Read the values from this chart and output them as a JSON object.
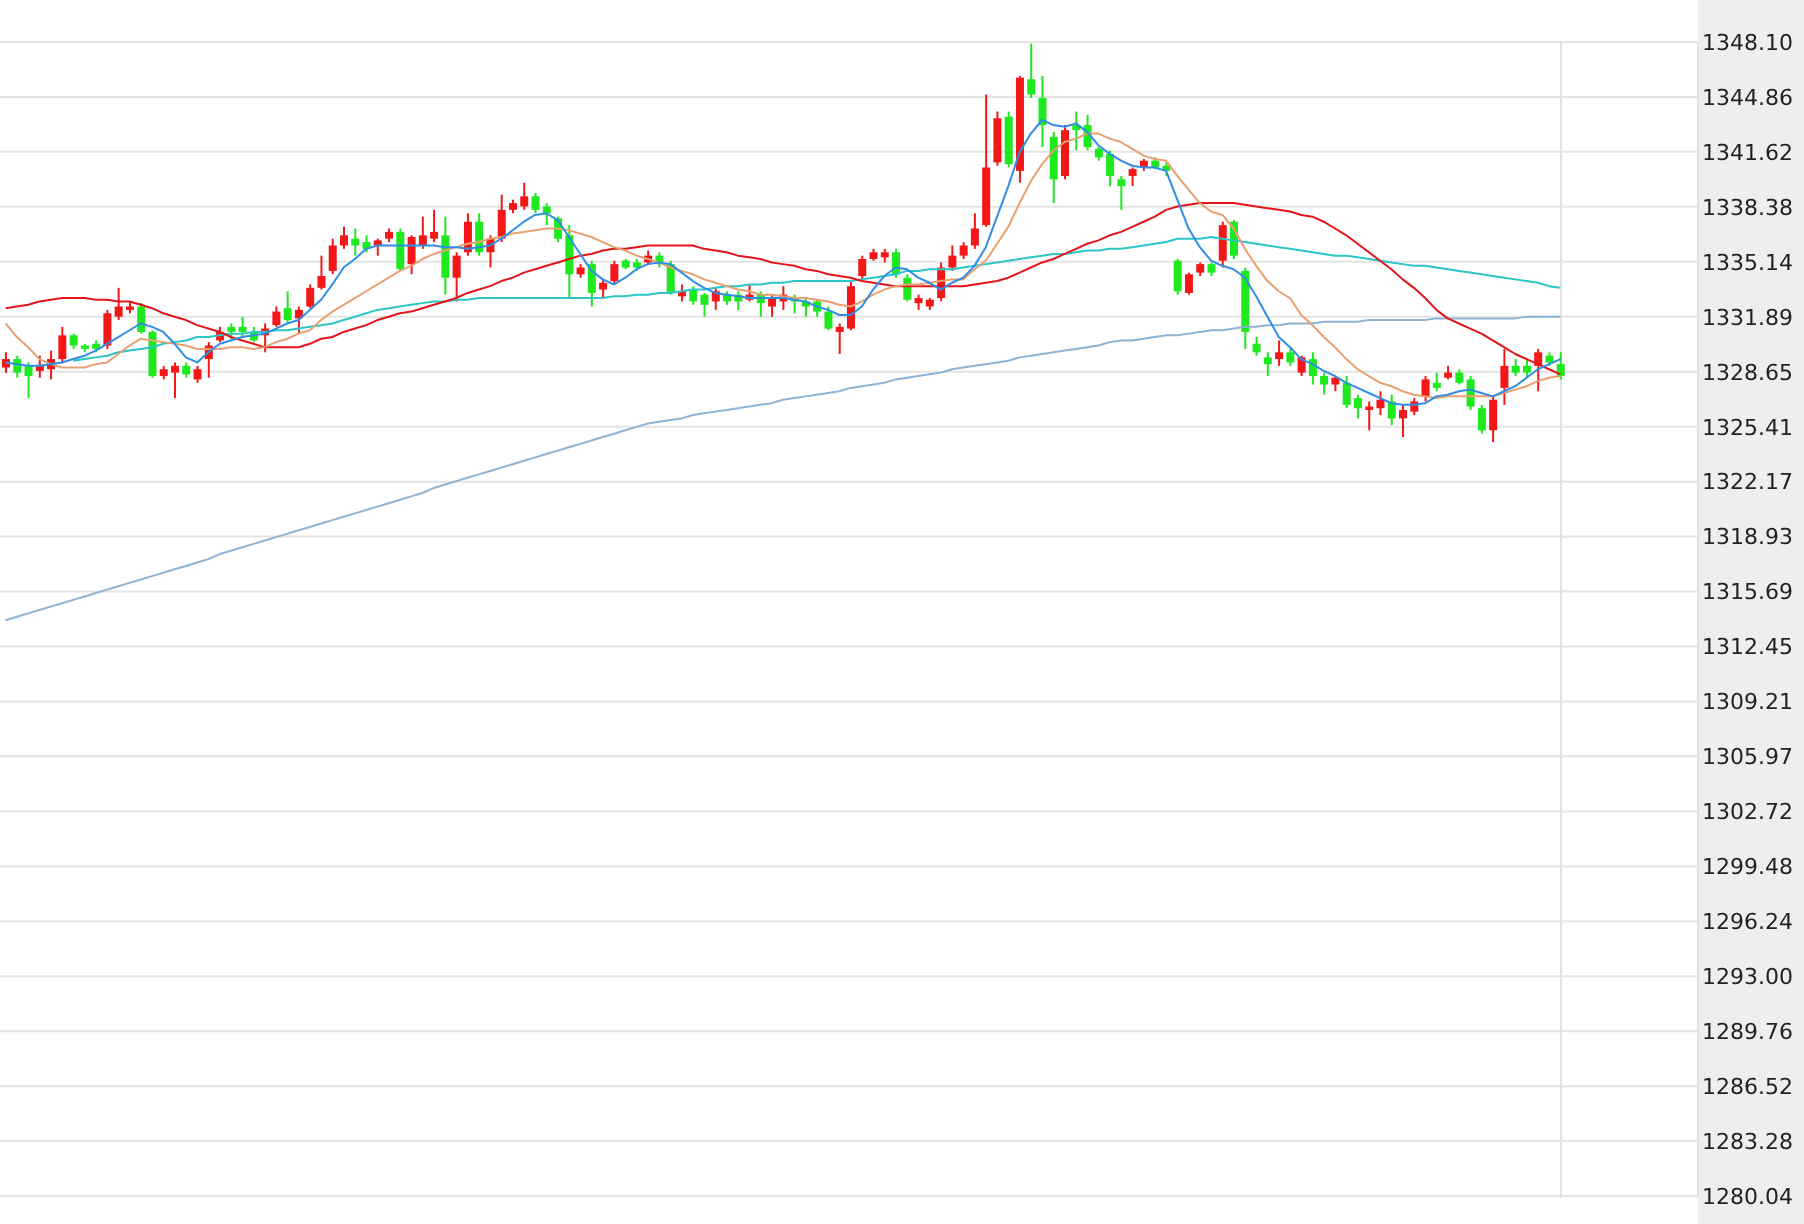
{
  "chart_data": {
    "type": "candlestick",
    "categories": [
      null,
      null,
      null,
      null,
      null,
      null,
      null,
      null,
      null,
      null,
      null,
      null,
      null,
      null,
      null,
      null,
      null,
      null,
      null,
      null,
      null,
      null,
      null,
      null,
      null,
      null,
      null,
      null,
      null,
      null,
      null,
      null,
      null,
      null,
      null,
      null,
      null,
      null,
      null,
      null,
      null,
      null,
      null,
      null,
      null,
      null,
      null,
      null,
      null,
      null,
      null,
      null,
      null,
      null,
      null,
      null,
      null,
      null,
      null,
      null,
      null,
      null,
      null,
      null,
      null,
      null,
      null,
      null,
      null,
      null,
      null,
      null,
      null,
      null,
      null,
      null,
      null,
      null,
      null,
      null,
      null,
      null,
      null,
      null,
      null,
      null,
      null,
      null,
      null,
      null,
      null,
      null,
      null,
      null,
      null,
      null,
      null,
      null,
      null,
      null,
      null,
      null,
      null,
      null,
      null,
      null,
      null,
      null,
      null,
      null,
      null,
      null,
      null,
      null,
      null,
      null,
      null,
      null,
      null,
      null,
      null,
      null,
      null,
      null,
      null,
      null,
      null,
      null,
      null,
      null,
      null,
      null,
      null,
      null,
      null,
      null,
      null,
      null,
      null
    ],
    "ohlc": [
      [
        1328.9,
        1329.8,
        1328.6,
        1329.4
      ],
      [
        1329.4,
        1329.6,
        1328.3,
        1328.6
      ],
      [
        1329.0,
        1329.2,
        1327.1,
        1328.4
      ],
      [
        1328.7,
        1329.6,
        1328.3,
        1329.0
      ],
      [
        1328.8,
        1329.9,
        1328.2,
        1329.4
      ],
      [
        1329.4,
        1331.3,
        1329.2,
        1330.8
      ],
      [
        1330.8,
        1330.9,
        1330.0,
        1330.2
      ],
      [
        1330.2,
        1330.3,
        1329.8,
        1330.0
      ],
      [
        1330.3,
        1330.5,
        1329.8,
        1330.0
      ],
      [
        1330.2,
        1332.3,
        1330.0,
        1332.1
      ],
      [
        1331.9,
        1333.6,
        1331.7,
        1332.5
      ],
      [
        1332.3,
        1332.8,
        1332.1,
        1332.5
      ],
      [
        1332.5,
        1332.7,
        1330.9,
        1331.0
      ],
      [
        1331.0,
        1331.1,
        1328.3,
        1328.4
      ],
      [
        1328.4,
        1329.0,
        1328.2,
        1328.8
      ],
      [
        1328.6,
        1329.2,
        1327.1,
        1329.0
      ],
      [
        1329.0,
        1329.2,
        1328.3,
        1328.5
      ],
      [
        1328.2,
        1329.0,
        1328.0,
        1328.8
      ],
      [
        1329.4,
        1330.4,
        1328.3,
        1330.2
      ],
      [
        1330.5,
        1331.3,
        1330.4,
        1331.0
      ],
      [
        1331.3,
        1331.5,
        1330.5,
        1331.0
      ],
      [
        1331.3,
        1331.9,
        1330.7,
        1331.0
      ],
      [
        1331.0,
        1331.3,
        1330.4,
        1330.5
      ],
      [
        1330.8,
        1331.5,
        1329.8,
        1331.2
      ],
      [
        1331.4,
        1332.5,
        1331.3,
        1332.2
      ],
      [
        1332.4,
        1333.4,
        1331.5,
        1331.7
      ],
      [
        1331.8,
        1332.5,
        1330.9,
        1332.3
      ],
      [
        1332.5,
        1333.8,
        1332.4,
        1333.6
      ],
      [
        1333.6,
        1335.5,
        1333.5,
        1334.3
      ],
      [
        1334.6,
        1336.5,
        1334.4,
        1336.1
      ],
      [
        1336.1,
        1337.2,
        1335.9,
        1336.7
      ],
      [
        1336.5,
        1337.1,
        1335.5,
        1336.1
      ],
      [
        1336.3,
        1336.7,
        1335.7,
        1335.9
      ],
      [
        1336.1,
        1336.5,
        1335.5,
        1336.4
      ],
      [
        1336.5,
        1337.1,
        1336.3,
        1336.9
      ],
      [
        1336.9,
        1337.1,
        1334.6,
        1334.7
      ],
      [
        1335.0,
        1336.7,
        1334.4,
        1336.6
      ],
      [
        1336.1,
        1337.8,
        1335.9,
        1336.7
      ],
      [
        1336.5,
        1338.2,
        1336.3,
        1336.9
      ],
      [
        1336.7,
        1337.8,
        1333.2,
        1334.2
      ],
      [
        1334.2,
        1335.7,
        1332.8,
        1335.5
      ],
      [
        1335.7,
        1338.0,
        1335.5,
        1337.5
      ],
      [
        1337.5,
        1338.0,
        1335.5,
        1335.7
      ],
      [
        1335.7,
        1336.7,
        1334.8,
        1336.5
      ],
      [
        1336.5,
        1339.1,
        1336.3,
        1338.2
      ],
      [
        1338.2,
        1338.8,
        1338.0,
        1338.6
      ],
      [
        1338.4,
        1339.8,
        1338.2,
        1339.0
      ],
      [
        1339.0,
        1339.2,
        1338.0,
        1338.2
      ],
      [
        1338.4,
        1338.6,
        1337.3,
        1338.0
      ],
      [
        1337.7,
        1337.8,
        1336.3,
        1336.5
      ],
      [
        1336.7,
        1337.3,
        1333.0,
        1334.4
      ],
      [
        1334.4,
        1335.0,
        1334.2,
        1334.8
      ],
      [
        1335.0,
        1335.2,
        1332.5,
        1333.3
      ],
      [
        1333.5,
        1334.1,
        1333.0,
        1333.9
      ],
      [
        1334.0,
        1335.2,
        1333.8,
        1335.0
      ],
      [
        1335.2,
        1335.3,
        1334.7,
        1334.8
      ],
      [
        1335.1,
        1335.3,
        1334.6,
        1334.8
      ],
      [
        1335.1,
        1335.8,
        1335.0,
        1335.5
      ],
      [
        1335.5,
        1335.7,
        1334.8,
        1335.0
      ],
      [
        1335.0,
        1335.2,
        1333.2,
        1333.3
      ],
      [
        1333.1,
        1333.8,
        1332.8,
        1333.4
      ],
      [
        1333.5,
        1333.7,
        1332.6,
        1332.8
      ],
      [
        1333.2,
        1333.3,
        1331.9,
        1332.6
      ],
      [
        1332.8,
        1333.6,
        1332.3,
        1333.4
      ],
      [
        1333.2,
        1333.4,
        1332.6,
        1332.8
      ],
      [
        1333.2,
        1333.4,
        1332.3,
        1332.8
      ],
      [
        1332.9,
        1333.8,
        1332.8,
        1333.2
      ],
      [
        1333.2,
        1333.4,
        1331.9,
        1332.7
      ],
      [
        1332.5,
        1333.2,
        1331.9,
        1333.0
      ],
      [
        1332.8,
        1333.7,
        1332.3,
        1333.2
      ],
      [
        1333.0,
        1333.2,
        1332.1,
        1332.8
      ],
      [
        1332.8,
        1333.0,
        1331.9,
        1332.5
      ],
      [
        1332.8,
        1332.9,
        1331.9,
        1332.2
      ],
      [
        1332.2,
        1332.5,
        1331.1,
        1331.2
      ],
      [
        1331.0,
        1331.5,
        1329.7,
        1331.3
      ],
      [
        1331.2,
        1334.0,
        1331.1,
        1333.7
      ],
      [
        1334.3,
        1335.5,
        1334.0,
        1335.3
      ],
      [
        1335.3,
        1335.9,
        1335.2,
        1335.7
      ],
      [
        1335.4,
        1335.9,
        1335.1,
        1335.7
      ],
      [
        1335.7,
        1335.9,
        1334.2,
        1334.4
      ],
      [
        1334.2,
        1334.4,
        1332.8,
        1332.9
      ],
      [
        1332.7,
        1333.2,
        1332.3,
        1333.0
      ],
      [
        1332.5,
        1333.0,
        1332.3,
        1332.9
      ],
      [
        1333.0,
        1335.1,
        1332.8,
        1334.8
      ],
      [
        1334.8,
        1336.1,
        1334.6,
        1335.5
      ],
      [
        1335.5,
        1336.3,
        1335.3,
        1336.1
      ],
      [
        1336.1,
        1338.0,
        1335.9,
        1337.1
      ],
      [
        1337.3,
        1345.0,
        1337.2,
        1340.7
      ],
      [
        1341.0,
        1344.0,
        1340.8,
        1343.6
      ],
      [
        1343.7,
        1344.0,
        1340.7,
        1340.9
      ],
      [
        1340.5,
        1346.1,
        1339.8,
        1346.0
      ],
      [
        1345.9,
        1348.0,
        1344.8,
        1345.0
      ],
      [
        1344.8,
        1346.1,
        1341.9,
        1343.2
      ],
      [
        1342.5,
        1342.8,
        1338.6,
        1340.0
      ],
      [
        1340.2,
        1343.2,
        1340.0,
        1342.9
      ],
      [
        1343.2,
        1344.0,
        1341.7,
        1342.9
      ],
      [
        1343.2,
        1343.8,
        1341.7,
        1341.9
      ],
      [
        1341.8,
        1341.9,
        1341.1,
        1341.3
      ],
      [
        1341.5,
        1341.7,
        1339.6,
        1340.2
      ],
      [
        1340.0,
        1340.2,
        1338.2,
        1339.6
      ],
      [
        1340.2,
        1340.7,
        1339.6,
        1340.6
      ],
      [
        1340.7,
        1341.2,
        1340.5,
        1341.1
      ],
      [
        1341.1,
        1341.3,
        1340.6,
        1340.7
      ],
      [
        1340.8,
        1341.0,
        1340.2,
        1340.5
      ],
      [
        1335.2,
        1335.3,
        1333.2,
        1333.4
      ],
      [
        1333.3,
        1334.5,
        1333.2,
        1334.4
      ],
      [
        1334.5,
        1335.1,
        1334.3,
        1335.0
      ],
      [
        1335.0,
        1335.1,
        1334.3,
        1334.5
      ],
      [
        1335.2,
        1337.5,
        1334.8,
        1337.3
      ],
      [
        1337.5,
        1337.6,
        1335.3,
        1335.5
      ],
      [
        1334.6,
        1334.8,
        1330.0,
        1331.0
      ],
      [
        1330.3,
        1330.7,
        1329.6,
        1329.8
      ],
      [
        1329.5,
        1329.8,
        1328.4,
        1329.1
      ],
      [
        1329.4,
        1330.5,
        1329.0,
        1329.8
      ],
      [
        1329.8,
        1330.0,
        1329.0,
        1329.2
      ],
      [
        1328.6,
        1329.6,
        1328.4,
        1329.5
      ],
      [
        1329.4,
        1329.8,
        1327.9,
        1328.4
      ],
      [
        1328.4,
        1328.6,
        1327.3,
        1327.9
      ],
      [
        1327.9,
        1328.4,
        1327.5,
        1328.3
      ],
      [
        1328.0,
        1328.4,
        1326.5,
        1326.7
      ],
      [
        1327.1,
        1327.3,
        1325.9,
        1326.5
      ],
      [
        1326.4,
        1326.9,
        1325.2,
        1326.6
      ],
      [
        1326.5,
        1327.5,
        1326.1,
        1327.0
      ],
      [
        1326.9,
        1327.3,
        1325.5,
        1325.9
      ],
      [
        1325.9,
        1326.7,
        1324.8,
        1326.4
      ],
      [
        1326.3,
        1327.1,
        1326.1,
        1326.9
      ],
      [
        1327.2,
        1328.4,
        1326.9,
        1328.2
      ],
      [
        1328.0,
        1328.6,
        1327.5,
        1327.7
      ],
      [
        1328.3,
        1329.0,
        1328.2,
        1328.6
      ],
      [
        1328.6,
        1328.8,
        1327.9,
        1328.0
      ],
      [
        1328.2,
        1328.4,
        1326.4,
        1326.6
      ],
      [
        1326.5,
        1326.7,
        1325.0,
        1325.2
      ],
      [
        1325.2,
        1327.2,
        1324.5,
        1327.0
      ],
      [
        1327.7,
        1330.0,
        1326.7,
        1329.0
      ],
      [
        1329.0,
        1329.4,
        1328.4,
        1328.6
      ],
      [
        1329.0,
        1329.4,
        1328.3,
        1328.6
      ],
      [
        1329.0,
        1330.0,
        1327.5,
        1329.8
      ],
      [
        1329.6,
        1329.8,
        1329.0,
        1329.2
      ],
      [
        1329.1,
        1329.8,
        1328.2,
        1328.4
      ]
    ],
    "colors": [
      "#f21818",
      "#1ee81e",
      "#1ee81e",
      "#f21818",
      "#f21818",
      "#f21818",
      "#1ee81e",
      "#1ee81e",
      "#1ee81e",
      "#f21818",
      "#f21818",
      "#f21818",
      "#1ee81e",
      "#1ee81e",
      "#f21818",
      "#f21818",
      "#1ee81e",
      "#f21818",
      "#f21818",
      "#f21818",
      "#1ee81e",
      "#1ee81e",
      "#1ee81e",
      "#f21818",
      "#f21818",
      "#1ee81e",
      "#f21818",
      "#f21818",
      "#f21818",
      "#f21818",
      "#f21818",
      "#1ee81e",
      "#1ee81e",
      "#f21818",
      "#f21818",
      "#1ee81e",
      "#f21818",
      "#f21818",
      "#f21818",
      "#1ee81e",
      "#f21818",
      "#f21818",
      "#1ee81e",
      "#f21818",
      "#f21818",
      "#f21818",
      "#f21818",
      "#1ee81e",
      "#1ee81e",
      "#1ee81e",
      "#1ee81e",
      "#f21818",
      "#1ee81e",
      "#f21818",
      "#f21818",
      "#1ee81e",
      "#1ee81e",
      "#f21818",
      "#1ee81e",
      "#1ee81e",
      "#f21818",
      "#1ee81e",
      "#1ee81e",
      "#f21818",
      "#1ee81e",
      "#1ee81e",
      "#f21818",
      "#1ee81e",
      "#f21818",
      "#f21818",
      "#1ee81e",
      "#1ee81e",
      "#1ee81e",
      "#1ee81e",
      "#f21818",
      "#f21818",
      "#f21818",
      "#f21818",
      "#f21818",
      "#1ee81e",
      "#1ee81e",
      "#f21818",
      "#f21818",
      "#f21818",
      "#f21818",
      "#f21818",
      "#f21818",
      "#f21818",
      "#f21818",
      "#1ee81e",
      "#f21818",
      "#1ee81e",
      "#1ee81e",
      "#1ee81e",
      "#f21818",
      "#1ee81e",
      "#1ee81e",
      "#1ee81e",
      "#1ee81e",
      "#1ee81e",
      "#f21818",
      "#f21818",
      "#1ee81e",
      "#1ee81e",
      "#1ee81e",
      "#f21818",
      "#f21818",
      "#1ee81e",
      "#f21818",
      "#1ee81e",
      "#1ee81e",
      "#1ee81e",
      "#1ee81e",
      "#f21818",
      "#1ee81e",
      "#f21818",
      "#1ee81e",
      "#1ee81e",
      "#f21818",
      "#1ee81e",
      "#1ee81e",
      "#f21818",
      "#f21818",
      "#1ee81e",
      "#f21818",
      "#f21818",
      "#f21818",
      "#1ee81e",
      "#f21818",
      "#1ee81e",
      "#1ee81e",
      "#1ee81e",
      "#f21818",
      "#f21818",
      "#1ee81e",
      "#1ee81e",
      "#f21818",
      "#1ee81e",
      "#1ee81e"
    ],
    "series": [
      {
        "type": "line",
        "color": "#8db4d4",
        "values": [
          1314.0,
          1314.2,
          1314.4,
          1314.6,
          1314.8,
          1315.0,
          1315.2,
          1315.4,
          1315.6,
          1315.8,
          1316.0,
          1316.2,
          1316.4,
          1316.6,
          1316.8,
          1317.0,
          1317.2,
          1317.4,
          1317.6,
          1317.9,
          1318.1,
          1318.3,
          1318.5,
          1318.7,
          1318.9,
          1319.1,
          1319.3,
          1319.5,
          1319.7,
          1319.9,
          1320.1,
          1320.3,
          1320.5,
          1320.7,
          1320.9,
          1321.1,
          1321.3,
          1321.5,
          1321.8,
          1322.0,
          1322.2,
          1322.4,
          1322.6,
          1322.8,
          1323.0,
          1323.2,
          1323.4,
          1323.6,
          1323.8,
          1324.0,
          1324.2,
          1324.4,
          1324.6,
          1324.8,
          1325.0,
          1325.2,
          1325.4,
          1325.6,
          1325.7,
          1325.8,
          1325.9,
          1326.1,
          1326.2,
          1326.3,
          1326.4,
          1326.5,
          1326.6,
          1326.7,
          1326.8,
          1327.0,
          1327.1,
          1327.2,
          1327.3,
          1327.4,
          1327.5,
          1327.7,
          1327.8,
          1327.9,
          1328.0,
          1328.2,
          1328.3,
          1328.4,
          1328.5,
          1328.6,
          1328.8,
          1328.9,
          1329.0,
          1329.1,
          1329.2,
          1329.3,
          1329.5,
          1329.6,
          1329.7,
          1329.8,
          1329.9,
          1330.0,
          1330.1,
          1330.2,
          1330.4,
          1330.5,
          1330.5,
          1330.6,
          1330.7,
          1330.8,
          1330.8,
          1330.9,
          1331.0,
          1331.1,
          1331.1,
          1331.2,
          1331.3,
          1331.3,
          1331.4,
          1331.4,
          1331.5,
          1331.5,
          1331.5,
          1331.6,
          1331.6,
          1331.6,
          1331.6,
          1331.7,
          1331.7,
          1331.7,
          1331.7,
          1331.7,
          1331.7,
          1331.8,
          1331.8,
          1331.8,
          1331.8,
          1331.8,
          1331.8,
          1331.8,
          1331.8,
          1331.9,
          1331.9,
          1331.9,
          1331.9
        ]
      },
      {
        "type": "line",
        "color": "#2cc5c8",
        "values": [
          null,
          null,
          null,
          null,
          null,
          null,
          1329.3,
          1329.4,
          1329.5,
          1329.6,
          1329.8,
          1329.9,
          1330.0,
          1330.1,
          1330.3,
          1330.4,
          1330.5,
          1330.7,
          1330.7,
          1330.8,
          1330.9,
          1330.9,
          1331.0,
          1331.0,
          1331.1,
          1331.1,
          1331.2,
          1331.3,
          1331.4,
          1331.5,
          1331.7,
          1331.9,
          1332.1,
          1332.3,
          1332.4,
          1332.5,
          1332.6,
          1332.7,
          1332.8,
          1332.8,
          1332.9,
          1332.9,
          1333.0,
          1333.0,
          1333.0,
          1333.0,
          1333.0,
          1333.0,
          1333.0,
          1333.0,
          1333.0,
          1333.0,
          1333.0,
          1333.0,
          1333.1,
          1333.1,
          1333.2,
          1333.2,
          1333.3,
          1333.3,
          1333.4,
          1333.5,
          1333.5,
          1333.6,
          1333.7,
          1333.7,
          1333.8,
          1333.8,
          1333.9,
          1333.9,
          1334.0,
          1334.0,
          1334.0,
          1334.0,
          1334.0,
          1334.0,
          1334.1,
          1334.2,
          1334.3,
          1334.4,
          1334.6,
          1334.6,
          1334.7,
          1334.7,
          1334.7,
          1334.8,
          1334.9,
          1335.0,
          1335.1,
          1335.2,
          1335.3,
          1335.4,
          1335.5,
          1335.6,
          1335.6,
          1335.7,
          1335.8,
          1335.8,
          1335.9,
          1335.9,
          1336.0,
          1336.1,
          1336.2,
          1336.3,
          1336.5,
          1336.5,
          1336.5,
          1336.6,
          1336.5,
          1336.4,
          1336.3,
          1336.2,
          1336.1,
          1336.0,
          1335.9,
          1335.8,
          1335.7,
          1335.6,
          1335.5,
          1335.5,
          1335.4,
          1335.3,
          1335.2,
          1335.1,
          1335.0,
          1334.9,
          1334.9,
          1334.8,
          1334.7,
          1334.6,
          1334.5,
          1334.4,
          1334.3,
          1334.2,
          1334.1,
          1334.0,
          1333.9,
          1333.7,
          1333.6
        ]
      },
      {
        "type": "line",
        "color": "#e3151b",
        "values": [
          1332.4,
          1332.5,
          1332.6,
          1332.8,
          1332.9,
          1333.0,
          1333.0,
          1333.0,
          1332.9,
          1332.9,
          1332.8,
          1332.8,
          1332.6,
          1332.4,
          1332.1,
          1331.9,
          1331.7,
          1331.4,
          1331.2,
          1331.0,
          1330.7,
          1330.5,
          1330.3,
          1330.1,
          1330.1,
          1330.1,
          1330.1,
          1330.3,
          1330.6,
          1330.7,
          1331.0,
          1331.2,
          1331.4,
          1331.7,
          1331.9,
          1332.1,
          1332.2,
          1332.4,
          1332.6,
          1332.8,
          1333.0,
          1333.3,
          1333.5,
          1333.7,
          1334.0,
          1334.2,
          1334.5,
          1334.7,
          1334.9,
          1335.1,
          1335.3,
          1335.5,
          1335.6,
          1335.8,
          1335.9,
          1335.9,
          1336.0,
          1336.1,
          1336.1,
          1336.1,
          1336.1,
          1336.1,
          1335.9,
          1335.8,
          1335.7,
          1335.5,
          1335.4,
          1335.3,
          1335.1,
          1335.0,
          1334.9,
          1334.7,
          1334.6,
          1334.4,
          1334.3,
          1334.2,
          1334.0,
          1333.9,
          1333.8,
          1333.7,
          1333.7,
          1333.7,
          1333.7,
          1333.7,
          1333.7,
          1333.7,
          1333.8,
          1333.9,
          1334.0,
          1334.2,
          1334.5,
          1334.8,
          1335.1,
          1335.3,
          1335.6,
          1335.9,
          1336.2,
          1336.4,
          1336.7,
          1336.9,
          1337.2,
          1337.5,
          1337.8,
          1338.2,
          1338.4,
          1338.5,
          1338.6,
          1338.6,
          1338.6,
          1338.6,
          1338.5,
          1338.4,
          1338.3,
          1338.2,
          1338.1,
          1337.9,
          1337.8,
          1337.5,
          1337.1,
          1336.7,
          1336.2,
          1335.7,
          1335.2,
          1334.7,
          1334.1,
          1333.6,
          1333.0,
          1332.3,
          1331.8,
          1331.5,
          1331.2,
          1330.9,
          1330.5,
          1330.1,
          1329.7,
          1329.4,
          1329.1,
          1328.8,
          1328.5
        ]
      },
      {
        "type": "line",
        "color": "#e8a070",
        "values": [
          1331.5,
          1330.7,
          1330.1,
          1329.4,
          1329.1,
          1328.9,
          1328.9,
          1328.9,
          1329.1,
          1329.2,
          1329.7,
          1330.2,
          1330.6,
          1330.5,
          1330.4,
          1330.3,
          1330.2,
          1330.0,
          1330.0,
          1330.0,
          1330.1,
          1330.1,
          1330.0,
          1330.1,
          1330.4,
          1330.6,
          1330.9,
          1331.1,
          1331.7,
          1332.2,
          1332.6,
          1333.0,
          1333.4,
          1333.8,
          1334.2,
          1334.6,
          1334.9,
          1335.3,
          1335.6,
          1335.8,
          1336.0,
          1336.2,
          1336.3,
          1336.5,
          1336.6,
          1336.8,
          1336.9,
          1337.0,
          1337.1,
          1337.1,
          1337.0,
          1336.8,
          1336.6,
          1336.3,
          1336.0,
          1335.8,
          1335.5,
          1335.3,
          1335.1,
          1334.8,
          1334.6,
          1334.4,
          1334.1,
          1333.9,
          1333.7,
          1333.5,
          1333.4,
          1333.2,
          1333.2,
          1333.1,
          1333.0,
          1333.0,
          1332.9,
          1332.8,
          1332.6,
          1332.5,
          1332.8,
          1333.2,
          1333.5,
          1333.7,
          1333.8,
          1333.8,
          1333.9,
          1334.0,
          1334.1,
          1334.1,
          1334.7,
          1335.2,
          1336.2,
          1337.2,
          1338.6,
          1339.9,
          1340.9,
          1341.7,
          1342.2,
          1342.4,
          1342.7,
          1342.7,
          1342.4,
          1342.2,
          1341.8,
          1341.4,
          1341.2,
          1341.1,
          1340.2,
          1339.4,
          1338.6,
          1338.1,
          1337.9,
          1337.1,
          1335.9,
          1334.9,
          1334.0,
          1333.4,
          1333.0,
          1332.0,
          1331.4,
          1330.7,
          1330.1,
          1329.4,
          1328.8,
          1328.4,
          1328.0,
          1327.8,
          1327.5,
          1327.3,
          1327.2,
          1327.1,
          1327.2,
          1327.2,
          1327.2,
          1327.2,
          1327.2,
          1327.4,
          1327.6,
          1327.8,
          1328.1,
          1328.3,
          1328.4
        ]
      },
      {
        "type": "line",
        "color": "#2f8ee6",
        "values": [
          1329.2,
          1329.1,
          1329.0,
          1329.0,
          1329.1,
          1329.2,
          1329.4,
          1329.6,
          1329.9,
          1330.3,
          1330.7,
          1331.1,
          1331.5,
          1331.3,
          1331.0,
          1330.3,
          1329.5,
          1329.2,
          1329.8,
          1330.3,
          1330.5,
          1330.7,
          1330.8,
          1330.9,
          1331.2,
          1331.5,
          1331.7,
          1332.3,
          1332.9,
          1333.8,
          1334.8,
          1335.3,
          1335.9,
          1336.1,
          1336.1,
          1336.1,
          1336.1,
          1336.1,
          1336.1,
          1336.0,
          1336.0,
          1335.9,
          1336.0,
          1336.1,
          1336.5,
          1337.0,
          1337.5,
          1337.9,
          1338.0,
          1337.6,
          1336.6,
          1335.6,
          1334.6,
          1334.1,
          1333.8,
          1334.2,
          1334.7,
          1335.0,
          1335.1,
          1335.0,
          1334.5,
          1334.0,
          1333.6,
          1333.3,
          1333.2,
          1333.1,
          1333.0,
          1333.0,
          1333.0,
          1333.0,
          1332.9,
          1332.8,
          1332.5,
          1332.3,
          1332.0,
          1332.0,
          1332.5,
          1333.5,
          1334.3,
          1334.8,
          1334.7,
          1334.2,
          1333.9,
          1333.5,
          1333.9,
          1334.2,
          1334.9,
          1336.0,
          1337.8,
          1339.6,
          1341.6,
          1342.7,
          1343.5,
          1343.2,
          1343.1,
          1343.3,
          1342.8,
          1342.0,
          1341.5,
          1341.1,
          1340.8,
          1340.7,
          1340.7,
          1340.5,
          1338.8,
          1337.1,
          1336.0,
          1335.2,
          1334.9,
          1334.7,
          1334.2,
          1333.1,
          1331.9,
          1330.7,
          1330.1,
          1329.4,
          1329.1,
          1328.7,
          1328.4,
          1328.0,
          1327.7,
          1327.4,
          1327.1,
          1326.8,
          1326.7,
          1326.7,
          1326.8,
          1327.2,
          1327.3,
          1327.5,
          1327.6,
          1327.4,
          1327.2,
          1327.5,
          1327.8,
          1328.3,
          1328.8,
          1329.1,
          1329.4
        ]
      }
    ],
    "ylim": [
      1280.04,
      1348.1
    ],
    "yticks": [
      {
        "value": 1348.1,
        "label": "1348.10"
      },
      1344.86,
      1341.62,
      1338.38,
      1335.14,
      1331.89,
      1328.65,
      1325.41,
      1322.17,
      1318.93,
      1315.69,
      1312.45,
      1309.21,
      1305.97,
      1302.72,
      1299.48,
      1296.24,
      {
        "value": 1293,
        "label": "1293.00"
      },
      1289.76,
      1286.52,
      1283.28,
      1280.04
    ],
    "grid": "y",
    "tick_labels": "y"
  }
}
